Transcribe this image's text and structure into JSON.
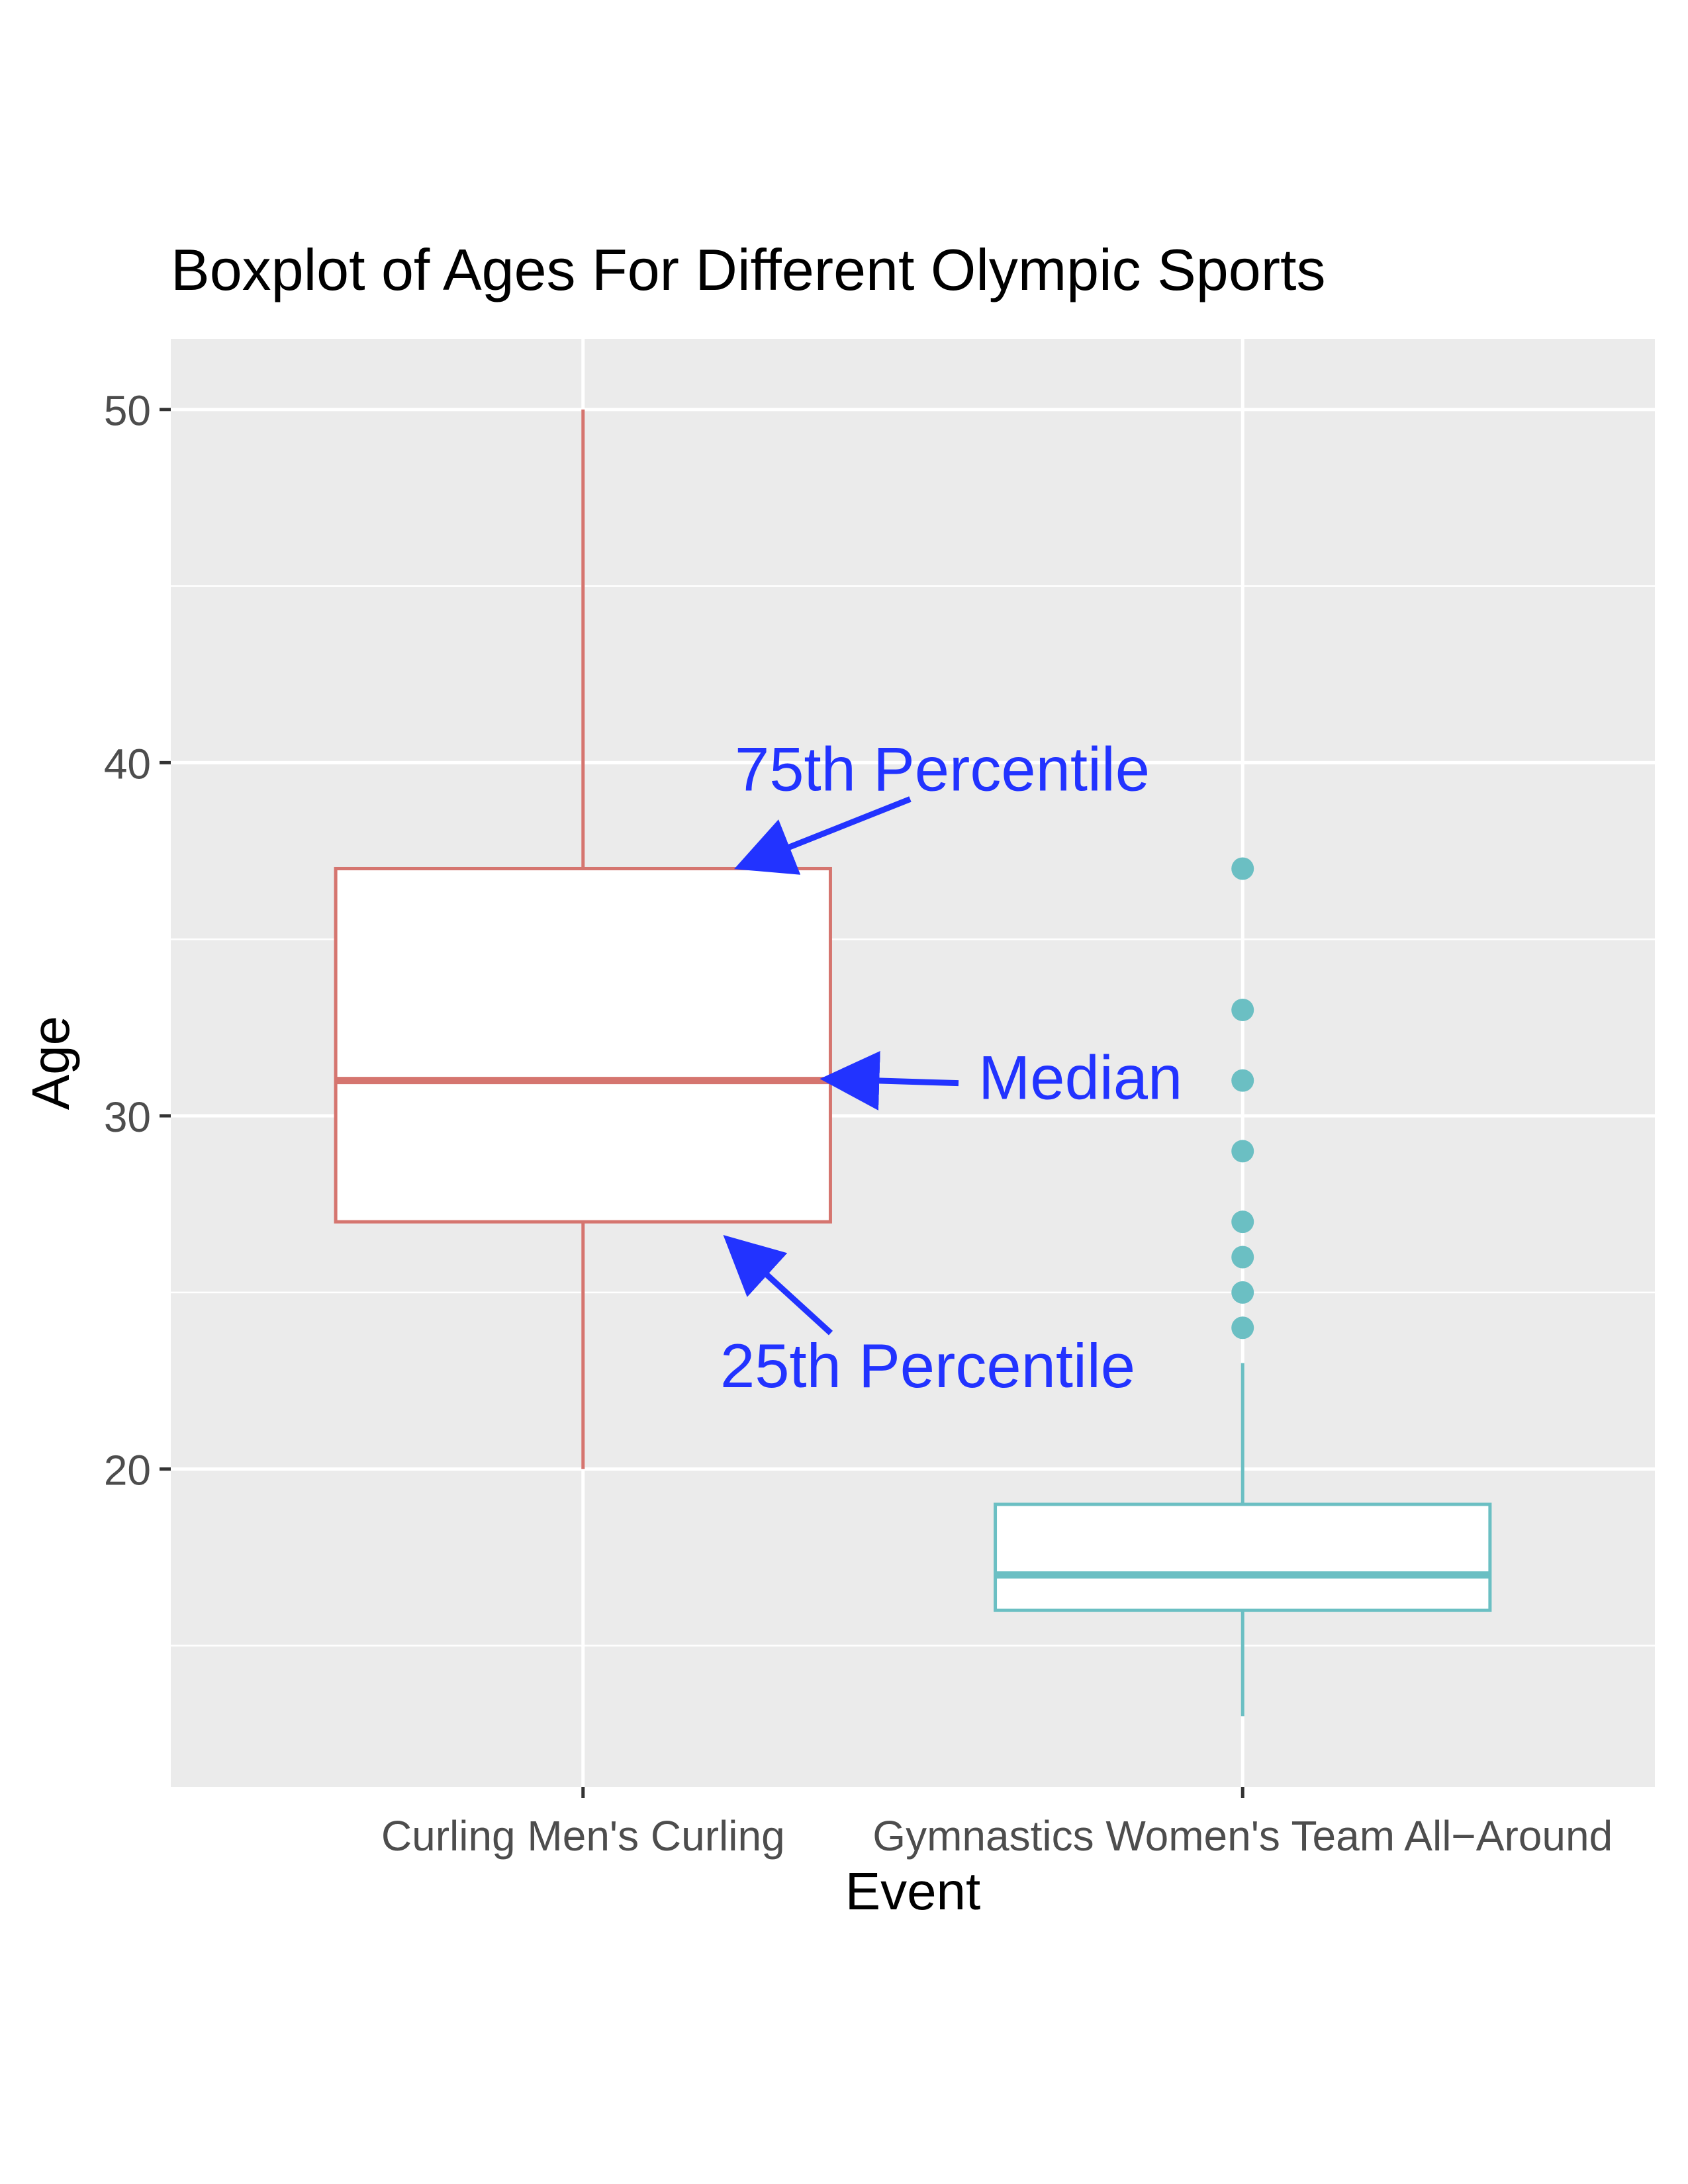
{
  "chart_data": {
    "type": "box",
    "title": "Boxplot of Ages For Different Olympic Sports",
    "xlabel": "Event",
    "ylabel": "Age",
    "ylim": [
      11,
      52
    ],
    "yticks": [
      20,
      30,
      40,
      50
    ],
    "grid": true,
    "legend": "none",
    "categories": [
      "Curling Men's Curling",
      "Gymnastics Women's Team All−Around"
    ],
    "boxes": [
      {
        "category": "Curling Men's Curling",
        "whisker_low": 20,
        "q1": 27,
        "median": 31,
        "q3": 37,
        "whisker_high": 50,
        "outliers": [],
        "color": "#D5756F"
      },
      {
        "category": "Gymnastics Women's Team All−Around",
        "whisker_low": 13,
        "q1": 16,
        "median": 17,
        "q3": 19,
        "whisker_high": 23,
        "outliers": [
          24,
          25,
          26,
          27,
          29,
          31,
          33,
          37
        ],
        "color": "#6BBFC3"
      }
    ],
    "annotations": [
      {
        "text": "75th Percentile",
        "points_to": "q3",
        "category_index": 0,
        "color": "#2233FF"
      },
      {
        "text": "Median",
        "points_to": "median",
        "category_index": 0,
        "color": "#2233FF"
      },
      {
        "text": "25th Percentile",
        "points_to": "q1",
        "category_index": 0,
        "color": "#2233FF"
      }
    ]
  }
}
